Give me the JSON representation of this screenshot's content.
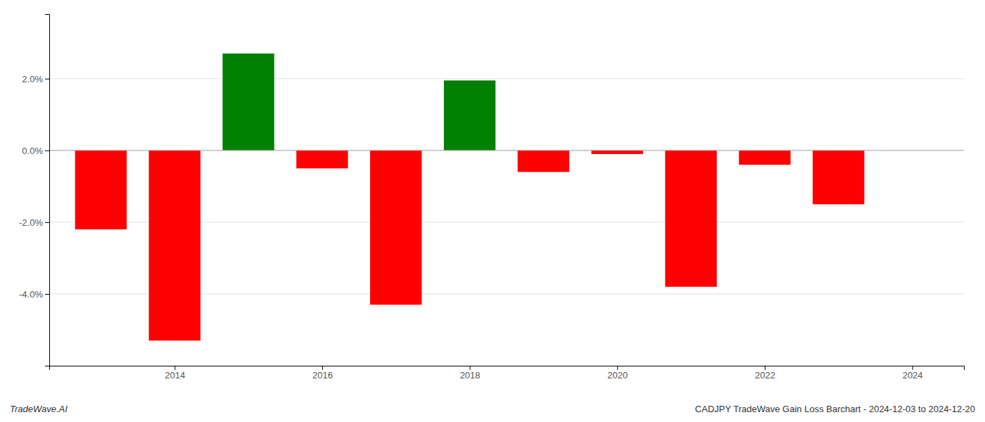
{
  "chart_data": {
    "type": "bar",
    "title": "CADJPY TradeWave Gain Loss Barchart - 2024-12-03 to 2024-12-20",
    "annotations": [
      "TradeWave.AI"
    ],
    "x": [
      2013,
      2014,
      2015,
      2016,
      2017,
      2018,
      2019,
      2020,
      2021,
      2022,
      2023
    ],
    "values": [
      -0.022,
      -0.053,
      0.027,
      -0.005,
      -0.043,
      0.0195,
      -0.006,
      -0.001,
      -0.038,
      -0.004,
      -0.015
    ],
    "colors": [
      "red",
      "red",
      "green",
      "red",
      "red",
      "green",
      "red",
      "red",
      "red",
      "red",
      "red"
    ],
    "xlim": [
      2012.3,
      2024.7
    ],
    "xticks": [
      2014,
      2016,
      2018,
      2020,
      2022,
      2024
    ],
    "ylim": [
      -0.06,
      0.038
    ],
    "yticks": [
      {
        "value": -0.04,
        "label": "-4.0%"
      },
      {
        "value": -0.02,
        "label": "-2.0%"
      },
      {
        "value": 0.0,
        "label": "0.0%"
      },
      {
        "value": 0.02,
        "label": "2.0%"
      }
    ],
    "grid": true
  }
}
